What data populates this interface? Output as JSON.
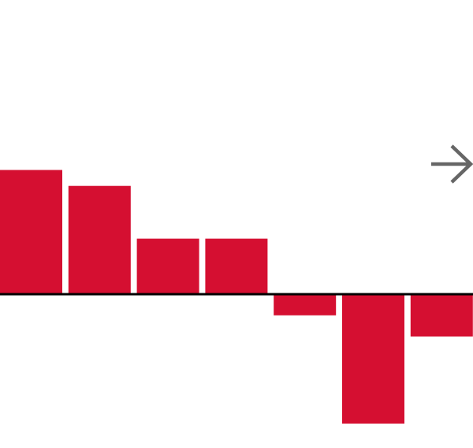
{
  "colors": {
    "bar": "#d50f31",
    "baseline": "#000000",
    "arrow": "#666666"
  },
  "icons": {
    "next": "arrow-right-icon"
  },
  "chart_data": {
    "type": "bar",
    "categories": [
      "",
      "",
      "",
      "",
      "",
      "",
      ""
    ],
    "values": [
      4.7,
      4.1,
      2.1,
      2.1,
      -0.8,
      -4.9,
      -1.6
    ],
    "ylim": [
      -5,
      7
    ],
    "grid": false,
    "legend": "none"
  }
}
